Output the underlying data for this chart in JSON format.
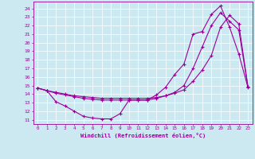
{
  "xlabel": "Windchill (Refroidissement éolien,°C)",
  "bg_color": "#cce8f0",
  "line_color": "#990099",
  "xlim": [
    -0.5,
    23.5
  ],
  "ylim": [
    10.5,
    24.8
  ],
  "xticks": [
    0,
    1,
    2,
    3,
    4,
    5,
    6,
    7,
    8,
    9,
    10,
    11,
    12,
    13,
    14,
    15,
    16,
    17,
    18,
    19,
    20,
    21,
    22,
    23
  ],
  "yticks": [
    11,
    12,
    13,
    14,
    15,
    16,
    17,
    18,
    19,
    20,
    21,
    22,
    23,
    24
  ],
  "series1_x": [
    0,
    1,
    2,
    3,
    4,
    5,
    6,
    7,
    8,
    9,
    10,
    11,
    12,
    13,
    14,
    15,
    16,
    17,
    18,
    19,
    20,
    21,
    22,
    23
  ],
  "series1_y": [
    14.7,
    14.4,
    13.1,
    12.6,
    12.0,
    11.4,
    11.2,
    11.1,
    11.1,
    11.7,
    13.3,
    13.3,
    13.3,
    13.9,
    14.8,
    16.3,
    17.5,
    21.0,
    21.3,
    23.3,
    24.3,
    21.8,
    18.7,
    14.8
  ],
  "series2_x": [
    0,
    1,
    2,
    3,
    4,
    5,
    6,
    7,
    8,
    9,
    10,
    11,
    12,
    13,
    14,
    15,
    16,
    17,
    18,
    19,
    20,
    21,
    22,
    23
  ],
  "series2_y": [
    14.7,
    14.4,
    14.1,
    13.9,
    13.7,
    13.5,
    13.4,
    13.3,
    13.3,
    13.3,
    13.3,
    13.3,
    13.3,
    13.5,
    13.8,
    14.2,
    15.0,
    17.0,
    19.5,
    22.0,
    23.5,
    22.5,
    21.5,
    14.9
  ],
  "series3_x": [
    0,
    1,
    2,
    3,
    4,
    5,
    6,
    7,
    8,
    9,
    10,
    11,
    12,
    13,
    14,
    15,
    16,
    17,
    18,
    19,
    20,
    21,
    22,
    23
  ],
  "series3_y": [
    14.7,
    14.4,
    14.2,
    14.0,
    13.8,
    13.7,
    13.6,
    13.5,
    13.5,
    13.5,
    13.5,
    13.5,
    13.5,
    13.6,
    13.8,
    14.1,
    14.5,
    15.5,
    16.8,
    18.5,
    21.8,
    23.2,
    22.2,
    14.9
  ]
}
